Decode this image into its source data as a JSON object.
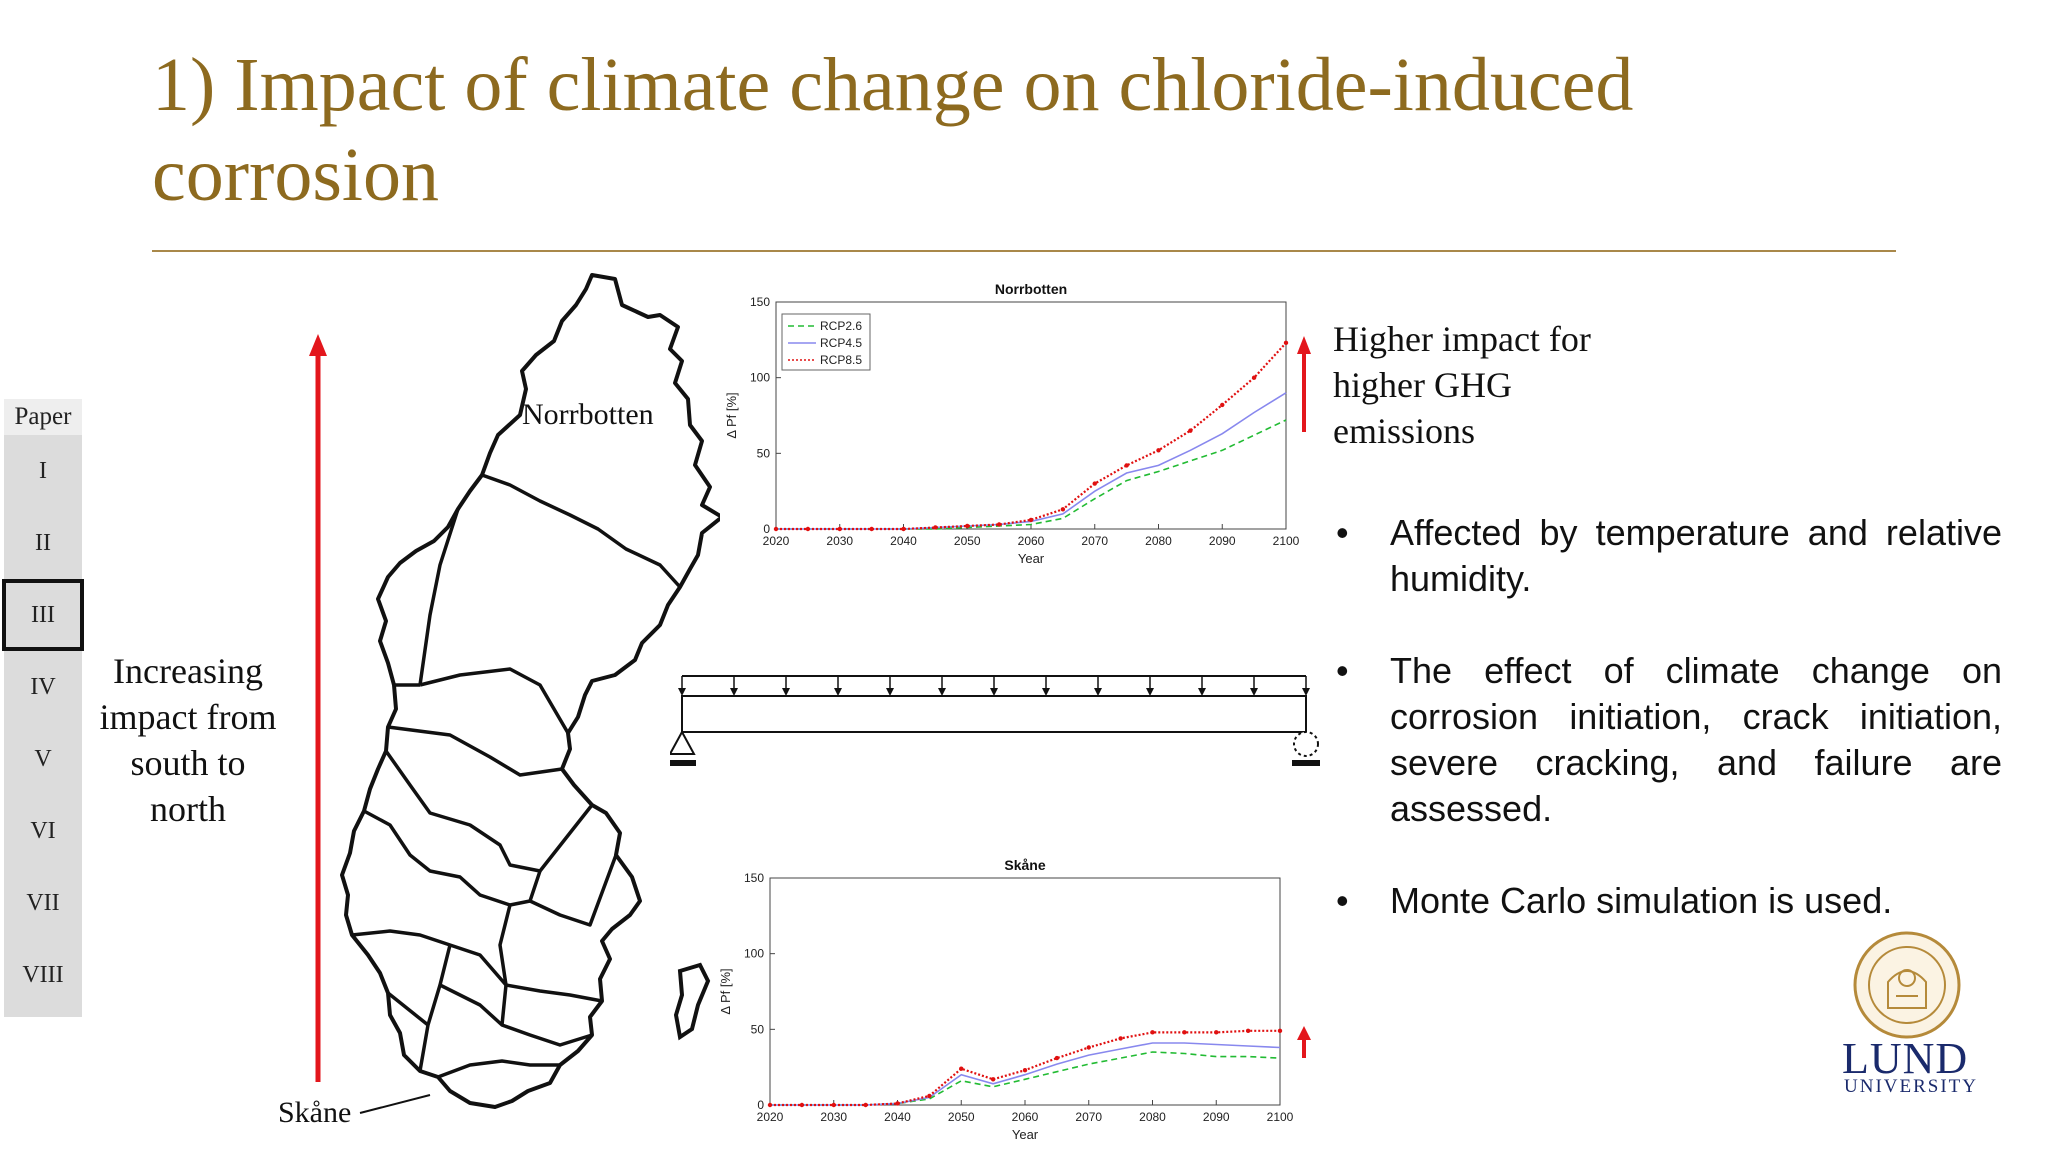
{
  "slide": {
    "title": "1) Impact of climate change on chloride-induced corrosion"
  },
  "paper_nav": {
    "header": "Paper",
    "items": [
      "I",
      "II",
      "III",
      "IV",
      "V",
      "VI",
      "VII",
      "VIII"
    ],
    "active": "III"
  },
  "map": {
    "north_label": "Norrbotten",
    "south_label": "Skåne",
    "side_text": "Increasing impact from south to north"
  },
  "higher_impact_text": "Higher impact for higher GHG emissions",
  "bullets": [
    "Affected by temperature and relative humidity.",
    "The effect of climate change on corrosion initiation, crack initiation, severe cracking, and failure are assessed.",
    "Monte Carlo simulation is used."
  ],
  "bullet_glyph": "•",
  "colors": {
    "title": "#8d6a1f",
    "arrow": "#e3161c",
    "rcp26": "#22bb33",
    "rcp45": "#8888ee",
    "rcp85": "#e01010",
    "lund_blue": "#1a2a6c"
  },
  "logo": {
    "line1": "LUND",
    "line2": "UNIVERSITY"
  },
  "chart_data": [
    {
      "type": "line",
      "title": "Norrbotten",
      "xlabel": "Year",
      "ylabel": "Δ Pf [%]",
      "xlim": [
        2020,
        2100
      ],
      "ylim": [
        0,
        150
      ],
      "xticks": [
        2020,
        2030,
        2040,
        2050,
        2060,
        2070,
        2080,
        2090,
        2100
      ],
      "yticks": [
        0,
        50,
        100,
        150
      ],
      "legend": "top-left",
      "x": [
        2020,
        2025,
        2030,
        2035,
        2040,
        2045,
        2050,
        2055,
        2060,
        2065,
        2070,
        2075,
        2080,
        2085,
        2090,
        2095,
        2100
      ],
      "series": [
        {
          "name": "RCP2.6",
          "values": [
            0,
            0,
            0,
            0,
            0,
            0,
            1,
            2,
            3,
            7,
            20,
            32,
            38,
            45,
            52,
            62,
            72
          ]
        },
        {
          "name": "RCP4.5",
          "values": [
            0,
            0,
            0,
            0,
            0,
            1,
            2,
            3,
            5,
            10,
            25,
            37,
            42,
            52,
            63,
            77,
            90
          ]
        },
        {
          "name": "RCP8.5",
          "values": [
            0,
            0,
            0,
            0,
            0,
            1,
            2,
            3,
            6,
            13,
            30,
            42,
            52,
            65,
            82,
            100,
            123
          ]
        }
      ]
    },
    {
      "type": "line",
      "title": "Skåne",
      "xlabel": "Year",
      "ylabel": "Δ Pf [%]",
      "xlim": [
        2020,
        2100
      ],
      "ylim": [
        0,
        150
      ],
      "xticks": [
        2020,
        2030,
        2040,
        2050,
        2060,
        2070,
        2080,
        2090,
        2100
      ],
      "yticks": [
        0,
        50,
        100,
        150
      ],
      "x": [
        2020,
        2025,
        2030,
        2035,
        2040,
        2045,
        2050,
        2055,
        2060,
        2065,
        2070,
        2075,
        2080,
        2085,
        2090,
        2095,
        2100
      ],
      "series": [
        {
          "name": "RCP2.6",
          "values": [
            0,
            0,
            0,
            0,
            1,
            4,
            16,
            12,
            17,
            22,
            27,
            31,
            35,
            34,
            32,
            32,
            31
          ]
        },
        {
          "name": "RCP4.5",
          "values": [
            0,
            0,
            0,
            0,
            1,
            5,
            20,
            14,
            20,
            27,
            33,
            37,
            41,
            41,
            40,
            39,
            38
          ]
        },
        {
          "name": "RCP8.5",
          "values": [
            0,
            0,
            0,
            0,
            1,
            6,
            24,
            17,
            23,
            31,
            38,
            44,
            48,
            48,
            48,
            49,
            49
          ]
        }
      ]
    }
  ]
}
